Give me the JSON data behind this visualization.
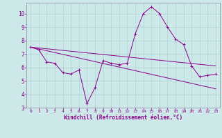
{
  "xlabel": "Windchill (Refroidissement éolien,°C)",
  "ylabel": "",
  "background_color": "#cce8e8",
  "grid_color": "#aacccc",
  "line_color": "#880088",
  "xlim": [
    -0.5,
    23.5
  ],
  "ylim": [
    3,
    10.8
  ],
  "yticks": [
    3,
    4,
    5,
    6,
    7,
    8,
    9,
    10
  ],
  "xticks": [
    0,
    1,
    2,
    3,
    4,
    5,
    6,
    7,
    8,
    9,
    10,
    11,
    12,
    13,
    14,
    15,
    16,
    17,
    18,
    19,
    20,
    21,
    22,
    23
  ],
  "line1_x": [
    0,
    1,
    2,
    3,
    4,
    5,
    6,
    7,
    8,
    9,
    10,
    11,
    12,
    13,
    14,
    15,
    16,
    17,
    18,
    19,
    20,
    21,
    22,
    23
  ],
  "line1_y": [
    7.5,
    7.3,
    6.4,
    6.3,
    5.6,
    5.5,
    5.8,
    3.3,
    4.5,
    6.5,
    6.3,
    6.2,
    6.3,
    8.5,
    10.0,
    10.5,
    10.0,
    9.0,
    8.1,
    7.7,
    6.1,
    5.3,
    5.4,
    5.5
  ],
  "line2_x": [
    0,
    23
  ],
  "line2_y": [
    7.5,
    6.1
  ],
  "line3_x": [
    0,
    23
  ],
  "line3_y": [
    7.5,
    4.4
  ],
  "figsize": [
    3.2,
    2.0
  ],
  "dpi": 100,
  "tick_fontsize_x": 4.5,
  "tick_fontsize_y": 5.5,
  "xlabel_fontsize": 5.5,
  "lw": 0.7,
  "marker_size": 2.5
}
